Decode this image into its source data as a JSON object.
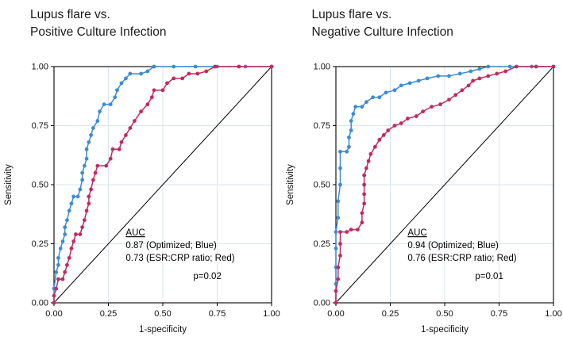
{
  "figure": {
    "background": "#ffffff",
    "grid_color": "#dbe5ee",
    "axis_color": "#000000",
    "text_color": "#111111"
  },
  "chart_data": [
    {
      "type": "line",
      "title_line1": "Lupus flare vs.",
      "title_line2": "Positive Culture Infection",
      "xlabel": "1-specificity",
      "ylabel": "Sensitivity",
      "xlim": [
        0,
        1
      ],
      "ylim": [
        0,
        1
      ],
      "tick_values": [
        0,
        0.25,
        0.5,
        0.75,
        1
      ],
      "xticks": [
        "0.00",
        "0.25",
        "0.50",
        "0.75",
        "1.00"
      ],
      "yticks": [
        "0.00",
        "0.25",
        "0.50",
        "0.75",
        "1.00"
      ],
      "grid": true,
      "reference_line": {
        "x": [
          0,
          1
        ],
        "y": [
          0,
          1
        ],
        "color": "#000000"
      },
      "annotation": {
        "heading": "AUC",
        "lines": [
          "0.87 (Optimized; Blue)",
          "0.73 (ESR:CRP ratio; Red)"
        ],
        "p_value": "p=0.02"
      },
      "series": [
        {
          "name": "Optimized",
          "color": "#3d8bd4",
          "auc": "0.87",
          "points": [
            [
              0,
              0
            ],
            [
              0,
              0.06
            ],
            [
              0.01,
              0.13
            ],
            [
              0.02,
              0.16
            ],
            [
              0.02,
              0.19
            ],
            [
              0.03,
              0.23
            ],
            [
              0.04,
              0.26
            ],
            [
              0.05,
              0.29
            ],
            [
              0.05,
              0.32
            ],
            [
              0.06,
              0.35
            ],
            [
              0.07,
              0.39
            ],
            [
              0.08,
              0.42
            ],
            [
              0.09,
              0.45
            ],
            [
              0.11,
              0.45
            ],
            [
              0.12,
              0.48
            ],
            [
              0.13,
              0.52
            ],
            [
              0.13,
              0.55
            ],
            [
              0.14,
              0.58
            ],
            [
              0.15,
              0.61
            ],
            [
              0.15,
              0.65
            ],
            [
              0.16,
              0.68
            ],
            [
              0.17,
              0.71
            ],
            [
              0.18,
              0.74
            ],
            [
              0.2,
              0.77
            ],
            [
              0.21,
              0.81
            ],
            [
              0.23,
              0.84
            ],
            [
              0.26,
              0.84
            ],
            [
              0.28,
              0.87
            ],
            [
              0.29,
              0.9
            ],
            [
              0.31,
              0.93
            ],
            [
              0.33,
              0.95
            ],
            [
              0.35,
              0.97
            ],
            [
              0.4,
              0.97
            ],
            [
              0.43,
              0.98
            ],
            [
              0.46,
              1
            ],
            [
              0.55,
              1
            ],
            [
              0.65,
              1
            ],
            [
              0.75,
              1
            ],
            [
              0.88,
              1
            ],
            [
              1,
              1
            ]
          ]
        },
        {
          "name": "ESR:CRP ratio",
          "color": "#c12a62",
          "auc": "0.73",
          "points": [
            [
              0,
              0
            ],
            [
              0,
              0.03
            ],
            [
              0.01,
              0.06
            ],
            [
              0.02,
              0.1
            ],
            [
              0.04,
              0.1
            ],
            [
              0.05,
              0.13
            ],
            [
              0.06,
              0.16
            ],
            [
              0.07,
              0.19
            ],
            [
              0.08,
              0.23
            ],
            [
              0.09,
              0.26
            ],
            [
              0.1,
              0.29
            ],
            [
              0.12,
              0.29
            ],
            [
              0.13,
              0.32
            ],
            [
              0.14,
              0.35
            ],
            [
              0.15,
              0.39
            ],
            [
              0.16,
              0.42
            ],
            [
              0.16,
              0.45
            ],
            [
              0.17,
              0.48
            ],
            [
              0.18,
              0.52
            ],
            [
              0.19,
              0.55
            ],
            [
              0.2,
              0.58
            ],
            [
              0.24,
              0.58
            ],
            [
              0.26,
              0.61
            ],
            [
              0.27,
              0.65
            ],
            [
              0.3,
              0.65
            ],
            [
              0.31,
              0.68
            ],
            [
              0.33,
              0.71
            ],
            [
              0.35,
              0.74
            ],
            [
              0.37,
              0.77
            ],
            [
              0.4,
              0.81
            ],
            [
              0.43,
              0.84
            ],
            [
              0.45,
              0.87
            ],
            [
              0.46,
              0.9
            ],
            [
              0.5,
              0.9
            ],
            [
              0.52,
              0.93
            ],
            [
              0.55,
              0.95
            ],
            [
              0.59,
              0.95
            ],
            [
              0.62,
              0.97
            ],
            [
              0.66,
              0.97
            ],
            [
              0.7,
              0.98
            ],
            [
              0.74,
              1
            ],
            [
              0.85,
              1
            ],
            [
              1,
              1
            ]
          ]
        }
      ]
    },
    {
      "type": "line",
      "title_line1": "Lupus flare vs.",
      "title_line2": "Negative Culture Infection",
      "xlabel": "1-specificity",
      "ylabel": "Sensitivity",
      "xlim": [
        0,
        1
      ],
      "ylim": [
        0,
        1
      ],
      "tick_values": [
        0,
        0.25,
        0.5,
        0.75,
        1
      ],
      "xticks": [
        "0.00",
        "0.25",
        "0.50",
        "0.75",
        "1.00"
      ],
      "yticks": [
        "0.00",
        "0.25",
        "0.50",
        "0.75",
        "1.00"
      ],
      "grid": true,
      "reference_line": {
        "x": [
          0,
          1
        ],
        "y": [
          0,
          1
        ],
        "color": "#000000"
      },
      "annotation": {
        "heading": "AUC",
        "lines": [
          "0.94 (Optimized; Blue)",
          "0.76 (ESR:CRP ratio; Red)"
        ],
        "p_value": "p=0.01"
      },
      "series": [
        {
          "name": "Optimized",
          "color": "#3d8bd4",
          "auc": "0.94",
          "points": [
            [
              0,
              0
            ],
            [
              0,
              0.08
            ],
            [
              0,
              0.15
            ],
            [
              0,
              0.23
            ],
            [
              0,
              0.3
            ],
            [
              0.01,
              0.36
            ],
            [
              0.01,
              0.43
            ],
            [
              0.02,
              0.5
            ],
            [
              0.02,
              0.57
            ],
            [
              0.02,
              0.64
            ],
            [
              0.05,
              0.64
            ],
            [
              0.06,
              0.66
            ],
            [
              0.06,
              0.7
            ],
            [
              0.07,
              0.73
            ],
            [
              0.07,
              0.77
            ],
            [
              0.08,
              0.8
            ],
            [
              0.09,
              0.83
            ],
            [
              0.12,
              0.83
            ],
            [
              0.14,
              0.85
            ],
            [
              0.17,
              0.87
            ],
            [
              0.2,
              0.87
            ],
            [
              0.23,
              0.89
            ],
            [
              0.27,
              0.9
            ],
            [
              0.3,
              0.92
            ],
            [
              0.34,
              0.93
            ],
            [
              0.38,
              0.94
            ],
            [
              0.42,
              0.95
            ],
            [
              0.47,
              0.96
            ],
            [
              0.52,
              0.96
            ],
            [
              0.57,
              0.97
            ],
            [
              0.62,
              0.98
            ],
            [
              0.66,
              0.99
            ],
            [
              0.7,
              1
            ],
            [
              0.8,
              1
            ],
            [
              0.9,
              1
            ],
            [
              1,
              1
            ]
          ]
        },
        {
          "name": "ESR:CRP ratio",
          "color": "#c12a62",
          "auc": "0.76",
          "points": [
            [
              0,
              0
            ],
            [
              0,
              0.05
            ],
            [
              0.01,
              0.1
            ],
            [
              0.01,
              0.15
            ],
            [
              0.02,
              0.2
            ],
            [
              0.02,
              0.25
            ],
            [
              0.02,
              0.3
            ],
            [
              0.05,
              0.3
            ],
            [
              0.07,
              0.31
            ],
            [
              0.1,
              0.31
            ],
            [
              0.12,
              0.34
            ],
            [
              0.12,
              0.38
            ],
            [
              0.13,
              0.42
            ],
            [
              0.13,
              0.46
            ],
            [
              0.13,
              0.5
            ],
            [
              0.13,
              0.54
            ],
            [
              0.14,
              0.57
            ],
            [
              0.15,
              0.6
            ],
            [
              0.16,
              0.63
            ],
            [
              0.18,
              0.66
            ],
            [
              0.2,
              0.69
            ],
            [
              0.22,
              0.71
            ],
            [
              0.24,
              0.73
            ],
            [
              0.27,
              0.75
            ],
            [
              0.3,
              0.76
            ],
            [
              0.33,
              0.78
            ],
            [
              0.37,
              0.79
            ],
            [
              0.4,
              0.81
            ],
            [
              0.44,
              0.83
            ],
            [
              0.48,
              0.84
            ],
            [
              0.52,
              0.86
            ],
            [
              0.55,
              0.88
            ],
            [
              0.58,
              0.9
            ],
            [
              0.61,
              0.92
            ],
            [
              0.63,
              0.94
            ],
            [
              0.66,
              0.95
            ],
            [
              0.7,
              0.96
            ],
            [
              0.74,
              0.97
            ],
            [
              0.78,
              0.98
            ],
            [
              0.83,
              1
            ],
            [
              0.92,
              1
            ],
            [
              1,
              1
            ]
          ]
        }
      ]
    }
  ]
}
